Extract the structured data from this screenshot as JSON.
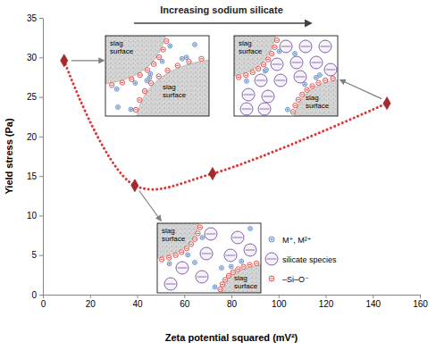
{
  "chart_data": {
    "type": "scatter",
    "x": [
      9,
      39,
      72,
      146
    ],
    "values": [
      29.6,
      13.8,
      15.3,
      24.2
    ],
    "color": "#a8292b",
    "marker": "diamond",
    "line_style": "dotted",
    "xlabel": "Zeta potential squared (mV²)",
    "ylabel": "Yield stress (Pa)",
    "xlim": [
      0,
      160
    ],
    "xticks": [
      0,
      20,
      40,
      60,
      80,
      100,
      120,
      140,
      160
    ],
    "ylim": [
      0,
      35
    ],
    "yticks": [
      0,
      5,
      10,
      15,
      20,
      25,
      30,
      35
    ],
    "grid": false,
    "annotation": "Increasing sodium silicate",
    "insets": [
      {
        "labels": [
          "slag surface",
          "slag surface"
        ]
      },
      {
        "labels": [
          "slag surface",
          "slag surface"
        ]
      },
      {
        "labels": [
          "slag surface",
          "slag surface"
        ]
      }
    ],
    "inset_legend": [
      "M⁺, M²⁺",
      "silicate species",
      "–Si–O⁻"
    ]
  }
}
